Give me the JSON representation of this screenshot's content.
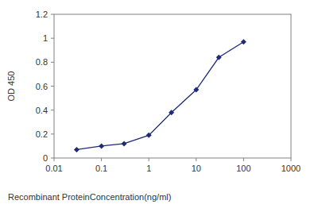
{
  "chart_data": {
    "type": "line",
    "x_label": "Recombinant ProteinConcentration(ng/ml)",
    "y_label": "OD 450",
    "x": [
      0.03,
      0.1,
      0.3,
      1,
      3,
      10,
      30,
      100
    ],
    "values": [
      0.07,
      0.1,
      0.12,
      0.19,
      0.38,
      0.57,
      0.84,
      0.97
    ],
    "color": "#1f2a7a",
    "marker": "diamond",
    "line_style": "solid",
    "log": "x",
    "grid": false,
    "xlim": [
      0.01,
      1000
    ],
    "xticks": [
      0.01,
      0.1,
      1,
      10,
      100,
      1000
    ],
    "ylim": [
      0,
      1.2
    ],
    "yticks": [
      0,
      0.2,
      0.4,
      0.6,
      0.8,
      1,
      1.2
    ]
  }
}
